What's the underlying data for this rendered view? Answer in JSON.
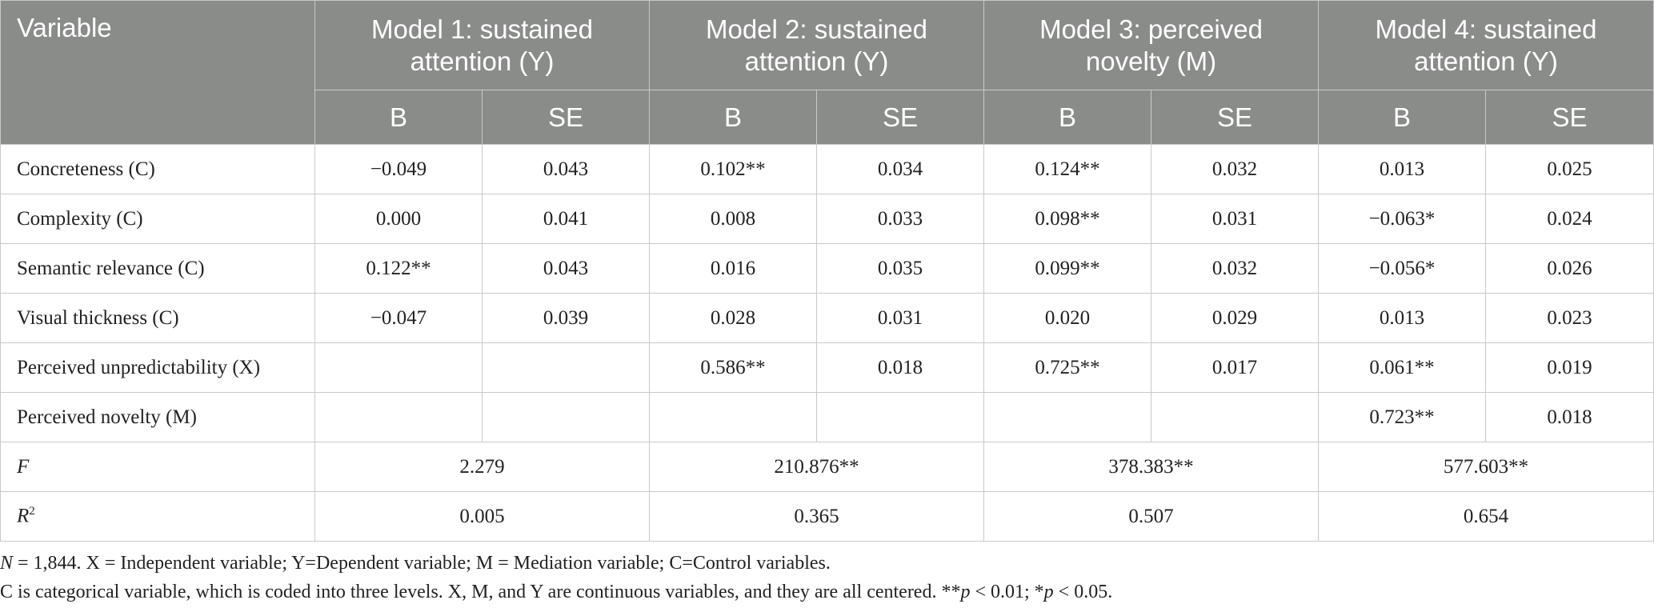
{
  "table": {
    "variable_header": "Variable",
    "models": [
      "Model 1: sustained attention (Y)",
      "Model 2: sustained attention (Y)",
      "Model 3: perceived novelty (M)",
      "Model 4: sustained attention (Y)"
    ],
    "sub_headers": {
      "b": "B",
      "se": "SE"
    },
    "rows": [
      {
        "label": "Concreteness (C)",
        "cells": [
          "−0.049",
          "0.043",
          "0.102**",
          "0.034",
          "0.124**",
          "0.032",
          "0.013",
          "0.025"
        ]
      },
      {
        "label": "Complexity (C)",
        "cells": [
          "0.000",
          "0.041",
          "0.008",
          "0.033",
          "0.098**",
          "0.031",
          "−0.063*",
          "0.024"
        ]
      },
      {
        "label": "Semantic relevance (C)",
        "cells": [
          "0.122**",
          "0.043",
          "0.016",
          "0.035",
          "0.099**",
          "0.032",
          "−0.056*",
          "0.026"
        ]
      },
      {
        "label": "Visual thickness (C)",
        "cells": [
          "−0.047",
          "0.039",
          "0.028",
          "0.031",
          "0.020",
          "0.029",
          "0.013",
          "0.023"
        ]
      },
      {
        "label": "Perceived unpredictability (X)",
        "cells": [
          "",
          "",
          "0.586**",
          "0.018",
          "0.725**",
          "0.017",
          "0.061**",
          "0.019"
        ]
      },
      {
        "label": "Perceived novelty (M)",
        "cells": [
          "",
          "",
          "",
          "",
          "",
          "",
          "0.723**",
          "0.018"
        ]
      }
    ],
    "f_row": {
      "label": "F",
      "values": [
        "2.279",
        "210.876**",
        "378.383**",
        "577.603**"
      ]
    },
    "r2_row": {
      "label": "R",
      "sup": "2",
      "values": [
        "0.005",
        "0.365",
        "0.507",
        "0.654"
      ]
    }
  },
  "notes": {
    "line1_n": "N",
    "line1_rest": " = 1,844. X = Independent variable; Y=Dependent variable; M = Mediation variable; C=Control variables.",
    "line2_pre": "C is categorical variable, which is coded into three levels. X, M, and Y are continuous variables, and they are all centered. **",
    "line2_p1": "p",
    "line2_mid": " < 0.01; *",
    "line2_p2": "p",
    "line2_end": " < 0.05."
  }
}
